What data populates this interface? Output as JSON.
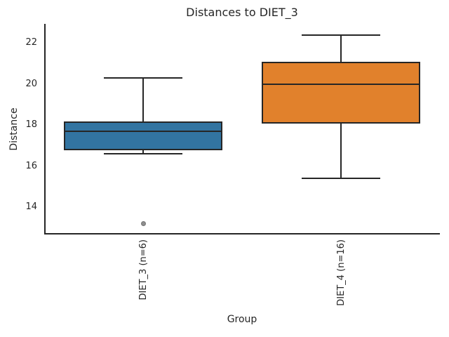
{
  "chart_data": {
    "type": "boxplot",
    "title": "Distances to DIET_3",
    "xlabel": "Group",
    "ylabel": "Distance",
    "ylim": [
      12.68,
      22.94
    ],
    "yticks": [
      14,
      16,
      18,
      20,
      22
    ],
    "categories": [
      "DIET_3 (n=6)",
      "DIET_4 (n=16)"
    ],
    "series": [
      {
        "name": "DIET_3 (n=6)",
        "whisker_low": 16.6,
        "q1": 16.8,
        "median": 17.7,
        "q3": 18.2,
        "whisker_high": 20.3,
        "outliers": [
          13.2
        ],
        "color": "#3274A1"
      },
      {
        "name": "DIET_4 (n=16)",
        "whisker_low": 15.4,
        "q1": 18.1,
        "median": 20.0,
        "q3": 21.1,
        "whisker_high": 22.4,
        "outliers": [],
        "color": "#E1812C"
      }
    ],
    "box_width_frac": 0.8,
    "cap_width_frac": 0.4,
    "line_color": "#262626",
    "outlier_fill_color": "#8E8E8E",
    "outlier_edge_color": "#757575",
    "grid": false,
    "legend": false
  }
}
